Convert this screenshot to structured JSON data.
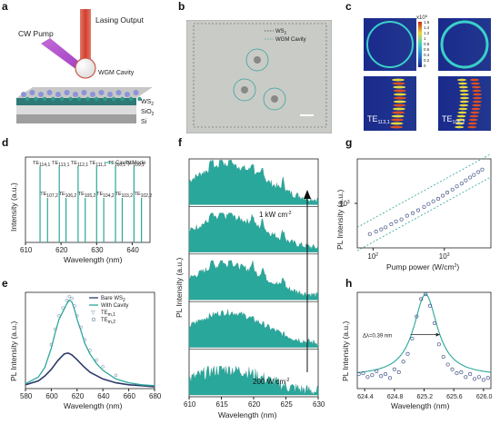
{
  "panel_labels": {
    "a": "a",
    "b": "b",
    "c": "c",
    "d": "d",
    "e": "e",
    "f": "f",
    "g": "g",
    "h": "h"
  },
  "panel_a": {
    "lasing_output": "Lasing Output",
    "cw_pump": "CW Pump",
    "wgm_cavity": "WGM Cavity",
    "ws2": "WS",
    "ws2_sub": "2",
    "sio2": "SiO",
    "sio2_sub": "2",
    "si": "Si"
  },
  "panel_b": {
    "legend_ws2": "WS",
    "legend_ws2_sub": "2",
    "legend_cavity": "WGM Cavity"
  },
  "panel_c": {
    "colorbar_exp": "x10",
    "colorbar_exp_sup": "5",
    "colorbar_ticks": [
      "1.6",
      "1.4",
      "1.2",
      "1",
      "0.8",
      "0.6",
      "0.4",
      "0.2",
      "0"
    ],
    "mode_left": "TE",
    "mode_left_sub": "113,1",
    "mode_right": "TE",
    "mode_right_sub": "106,2"
  },
  "chart_data": [
    {
      "id": "d",
      "type": "line",
      "xlabel": "Wavelength (nm)",
      "ylabel": "Intensity (a.u.)",
      "xlim": [
        610,
        645
      ],
      "xticks": [
        "610",
        "620",
        "630",
        "640"
      ],
      "legend": "Cavity Mode",
      "series": [
        {
          "name": "Cavity Mode",
          "tall_peaks": [
            614.1,
            619.5,
            624.8,
            630.0,
            635.3,
            640.5
          ],
          "short_peaks": [
            616.2,
            621.4,
            626.8,
            632.0,
            637.2,
            642.6
          ]
        }
      ],
      "annotations_top": [
        {
          "text": "TE",
          "sub": "114,1"
        },
        {
          "text": "TE",
          "sub": "113,1"
        },
        {
          "text": "TE",
          "sub": "112,1"
        },
        {
          "text": "TE",
          "sub": "111,1"
        },
        {
          "text": "TE",
          "sub": "110,1"
        },
        {
          "text": "TE",
          "sub": "109,1"
        }
      ],
      "annotations_bottom": [
        {
          "text": "TE",
          "sub": "107,2"
        },
        {
          "text": "TE",
          "sub": "106,2"
        },
        {
          "text": "TE",
          "sub": "105,2"
        },
        {
          "text": "TE",
          "sub": "104,2"
        },
        {
          "text": "TE",
          "sub": "103,2"
        },
        {
          "text": "TE",
          "sub": "102,2"
        }
      ]
    },
    {
      "id": "e",
      "type": "line",
      "xlabel": "Wavelength (nm)",
      "ylabel": "PL Intensity (a.u.)",
      "xlim": [
        580,
        680
      ],
      "xticks": [
        "580",
        "600",
        "620",
        "640",
        "660",
        "680"
      ],
      "legend": [
        "Bare WS",
        "With Cavity",
        "TE",
        "TE"
      ],
      "legend_subs": [
        "2",
        "",
        "m,1",
        "m,2"
      ],
      "series": [
        {
          "name": "Bare WS2",
          "x": [
            580,
            590,
            595,
            600,
            605,
            610,
            613,
            616,
            620,
            625,
            630,
            640,
            650,
            660,
            670,
            680
          ],
          "y": [
            0.04,
            0.08,
            0.13,
            0.2,
            0.29,
            0.36,
            0.37,
            0.35,
            0.3,
            0.23,
            0.17,
            0.1,
            0.06,
            0.04,
            0.03,
            0.02
          ]
        },
        {
          "name": "With Cavity",
          "x": [
            580,
            590,
            595,
            600,
            603,
            606,
            609,
            612,
            614,
            616,
            618,
            620,
            623,
            626,
            630,
            635,
            640,
            650,
            660,
            670,
            680
          ],
          "y": [
            0.05,
            0.12,
            0.22,
            0.42,
            0.58,
            0.72,
            0.8,
            0.88,
            0.92,
            0.9,
            0.82,
            0.72,
            0.6,
            0.47,
            0.36,
            0.26,
            0.19,
            0.1,
            0.06,
            0.04,
            0.03
          ]
        }
      ]
    },
    {
      "id": "f",
      "type": "area",
      "xlabel": "Wavelength (nm)",
      "ylabel": "PL Intensity (a.u.)",
      "xlim": [
        610,
        630
      ],
      "xticks": [
        "610",
        "615",
        "620",
        "625",
        "630"
      ],
      "annotation_high": "1 kW cm",
      "annotation_high_sup": "-2",
      "annotation_low": "200 W cm",
      "annotation_low_sup": "-2",
      "stack_count": 5
    },
    {
      "id": "g",
      "type": "scatter",
      "xlabel": "Pump power (W/cm",
      "xlabel_sup": "2",
      "xlabel_end": ")",
      "ylabel": "PL Intensity (a.u.)",
      "xscale": "log",
      "yscale": "log",
      "xticks": [
        "10",
        "10"
      ],
      "xtick_sups": [
        "2",
        "3"
      ],
      "yticks": [
        "10"
      ],
      "ytick_sups": [
        "3"
      ],
      "x": [
        90,
        110,
        130,
        150,
        180,
        210,
        250,
        300,
        360,
        430,
        520,
        600,
        700,
        820,
        950,
        1100,
        1300,
        1500,
        1750,
        2000,
        2300,
        2600,
        3000,
        3400
      ],
      "y": [
        330,
        360,
        390,
        420,
        470,
        520,
        560,
        640,
        700,
        780,
        880,
        980,
        1080,
        1180,
        1320,
        1480,
        1650,
        1850,
        2050,
        2300,
        2550,
        2800,
        3100,
        3400
      ]
    },
    {
      "id": "h",
      "type": "scatter",
      "xlabel": "Wavelength (nm)",
      "ylabel": "PL Intensity (a.u.)",
      "xlim": [
        624.3,
        626.1
      ],
      "xticks": [
        "624.4",
        "624.8",
        "625.2",
        "625.6",
        "626.0"
      ],
      "annotation": "Δλ=0.39 nm",
      "x": [
        624.32,
        624.38,
        624.44,
        624.5,
        624.56,
        624.62,
        624.68,
        624.74,
        624.8,
        624.86,
        624.92,
        624.98,
        625.04,
        625.1,
        625.16,
        625.22,
        625.28,
        625.34,
        625.4,
        625.46,
        625.52,
        625.58,
        625.64,
        625.7,
        625.76,
        625.82,
        625.88,
        625.94,
        626.0,
        626.06
      ],
      "y": [
        0.15,
        0.16,
        0.12,
        0.14,
        0.18,
        0.13,
        0.15,
        0.11,
        0.2,
        0.17,
        0.28,
        0.36,
        0.52,
        0.75,
        0.93,
        0.98,
        0.86,
        0.68,
        0.46,
        0.33,
        0.25,
        0.2,
        0.16,
        0.17,
        0.12,
        0.15,
        0.1,
        0.12,
        0.09,
        0.11
      ]
    }
  ]
}
